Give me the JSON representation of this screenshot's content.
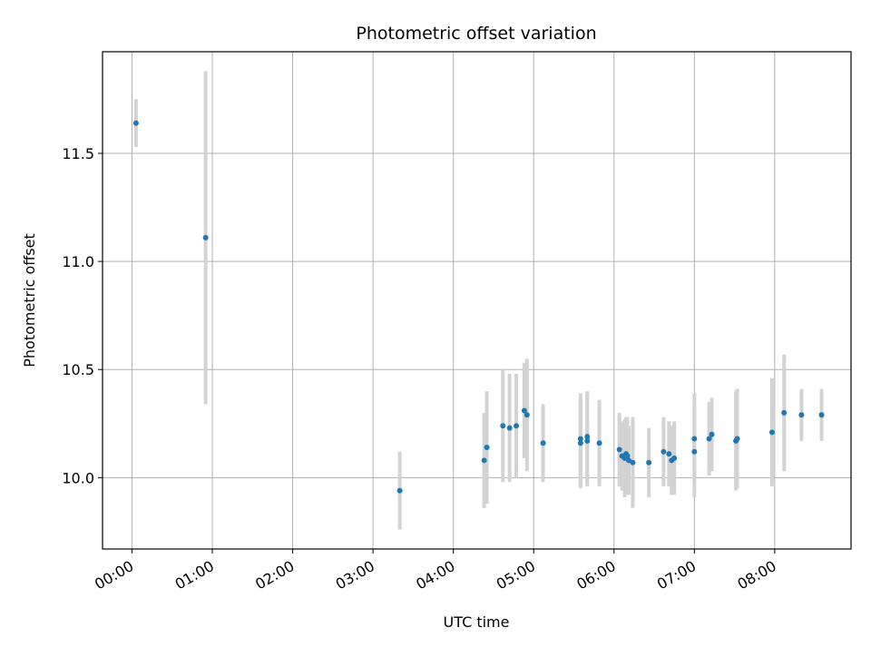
{
  "chart_data": {
    "type": "scatter",
    "title": "Photometric offset variation",
    "xlabel": "UTC time",
    "ylabel": "Photometric offset",
    "x_tick_labels": [
      "00:00",
      "01:00",
      "02:00",
      "03:00",
      "04:00",
      "05:00",
      "06:00",
      "07:00",
      "08:00"
    ],
    "y_ticks": [
      10.0,
      10.5,
      11.0,
      11.5
    ],
    "y_tick_labels": [
      "10.0",
      "10.5",
      "11.0",
      "11.5"
    ],
    "xlim": [
      "23:38",
      "08:57"
    ],
    "ylim": [
      9.67,
      11.97
    ],
    "grid": true,
    "colors": {
      "point": "#1f77b4",
      "errorbar": "#d3d3d3",
      "grid": "#b0b0b0"
    },
    "points": [
      {
        "x": "00:03",
        "y": 11.64,
        "err": 0.11
      },
      {
        "x": "00:55",
        "y": 11.11,
        "err": 0.77
      },
      {
        "x": "03:20",
        "y": 9.94,
        "err": 0.18
      },
      {
        "x": "04:23",
        "y": 10.08,
        "err": 0.22
      },
      {
        "x": "04:25",
        "y": 10.14,
        "err": 0.26
      },
      {
        "x": "04:37",
        "y": 10.24,
        "err": 0.26
      },
      {
        "x": "04:42",
        "y": 10.23,
        "err": 0.25
      },
      {
        "x": "04:47",
        "y": 10.24,
        "err": 0.24
      },
      {
        "x": "04:53",
        "y": 10.31,
        "err": 0.22
      },
      {
        "x": "04:55",
        "y": 10.29,
        "err": 0.26
      },
      {
        "x": "05:07",
        "y": 10.16,
        "err": 0.18
      },
      {
        "x": "05:35",
        "y": 10.18,
        "err": 0.21
      },
      {
        "x": "05:35",
        "y": 10.16,
        "err": 0.21
      },
      {
        "x": "05:40",
        "y": 10.19,
        "err": 0.21
      },
      {
        "x": "05:40",
        "y": 10.17,
        "err": 0.21
      },
      {
        "x": "05:49",
        "y": 10.16,
        "err": 0.2
      },
      {
        "x": "06:04",
        "y": 10.13,
        "err": 0.17
      },
      {
        "x": "06:06",
        "y": 10.1,
        "err": 0.16
      },
      {
        "x": "06:08",
        "y": 10.09,
        "err": 0.18
      },
      {
        "x": "06:09",
        "y": 10.11,
        "err": 0.17
      },
      {
        "x": "06:10",
        "y": 10.1,
        "err": 0.18
      },
      {
        "x": "06:11",
        "y": 10.08,
        "err": 0.16
      },
      {
        "x": "06:14",
        "y": 10.07,
        "err": 0.21
      },
      {
        "x": "06:26",
        "y": 10.07,
        "err": 0.16
      },
      {
        "x": "06:37",
        "y": 10.12,
        "err": 0.16
      },
      {
        "x": "06:41",
        "y": 10.11,
        "err": 0.15
      },
      {
        "x": "06:43",
        "y": 10.08,
        "err": 0.16
      },
      {
        "x": "06:45",
        "y": 10.09,
        "err": 0.17
      },
      {
        "x": "07:00",
        "y": 10.18,
        "err": 0.21
      },
      {
        "x": "07:00",
        "y": 10.12,
        "err": 0.21
      },
      {
        "x": "07:11",
        "y": 10.18,
        "err": 0.17
      },
      {
        "x": "07:13",
        "y": 10.2,
        "err": 0.17
      },
      {
        "x": "07:31",
        "y": 10.17,
        "err": 0.23
      },
      {
        "x": "07:32",
        "y": 10.18,
        "err": 0.23
      },
      {
        "x": "07:58",
        "y": 10.21,
        "err": 0.25
      },
      {
        "x": "08:07",
        "y": 10.3,
        "err": 0.27
      },
      {
        "x": "08:20",
        "y": 10.29,
        "err": 0.12
      },
      {
        "x": "08:35",
        "y": 10.29,
        "err": 0.12
      }
    ]
  }
}
